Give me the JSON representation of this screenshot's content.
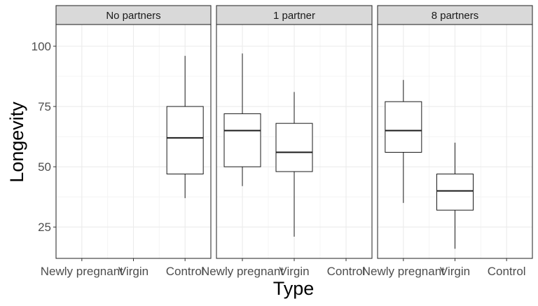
{
  "chart_data": {
    "type": "boxplot",
    "facet_variable": "partners",
    "xlabel": "Type",
    "ylabel": "Longevity",
    "categories": [
      "Newly pregnant",
      "Virgin",
      "Control"
    ],
    "ylim": [
      12,
      109
    ],
    "y_ticks": [
      25,
      50,
      75,
      100
    ],
    "grid": true,
    "facets": [
      {
        "label": "No partners",
        "boxes": [
          {
            "category": "Control",
            "min": 37,
            "q1": 47,
            "median": 62,
            "q3": 75,
            "max": 96
          }
        ]
      },
      {
        "label": "1 partner",
        "boxes": [
          {
            "category": "Newly pregnant",
            "min": 42,
            "q1": 50,
            "median": 65,
            "q3": 72,
            "max": 97
          },
          {
            "category": "Virgin",
            "min": 21,
            "q1": 48,
            "median": 56,
            "q3": 68,
            "max": 81
          }
        ]
      },
      {
        "label": "8 partners",
        "boxes": [
          {
            "category": "Newly pregnant",
            "min": 35,
            "q1": 56,
            "median": 65,
            "q3": 77,
            "max": 86
          },
          {
            "category": "Virgin",
            "min": 16,
            "q1": 32,
            "median": 40,
            "q3": 47,
            "max": 60
          }
        ]
      }
    ]
  },
  "colors": {
    "strip_fill": "#d9d9d9",
    "grid_major": "#ebebeb",
    "grid_minor": "#f4f4f4",
    "frame": "#333333",
    "box_stroke": "#1a1a1a",
    "tick_text": "#4d4d4d"
  }
}
